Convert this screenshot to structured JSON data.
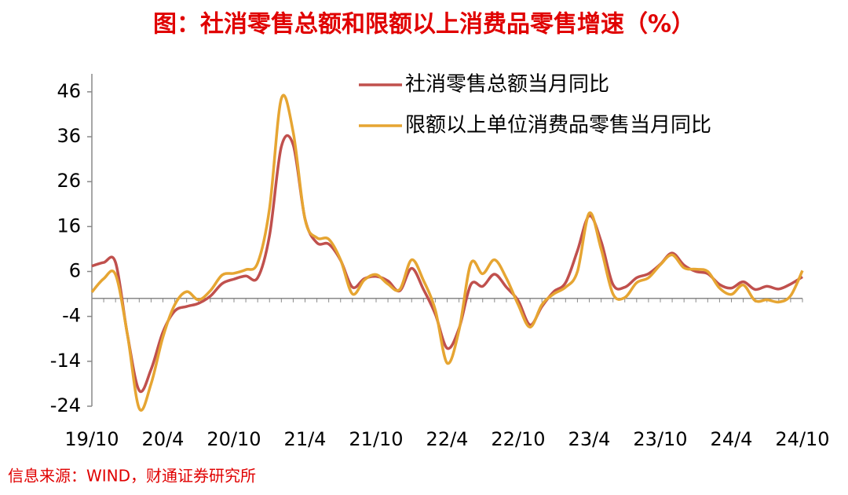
{
  "chart_data": {
    "type": "line",
    "title": "图：社消零售总额和限额以上消费品零售增速（%）",
    "source": "信息来源：WIND，财通证券研究所",
    "categories": [
      "19/10",
      null,
      null,
      null,
      null,
      null,
      "20/4",
      null,
      null,
      null,
      null,
      null,
      "20/10",
      null,
      null,
      null,
      null,
      null,
      "21/4",
      null,
      null,
      null,
      null,
      null,
      "21/10",
      null,
      null,
      null,
      null,
      null,
      "22/4",
      null,
      null,
      null,
      null,
      null,
      "22/10",
      null,
      null,
      null,
      null,
      null,
      "23/4",
      null,
      null,
      null,
      null,
      null,
      "23/10",
      null,
      null,
      null,
      null,
      null,
      "24/4",
      null,
      null,
      null,
      null,
      null,
      "24/10"
    ],
    "series": [
      {
        "name": "社消零售总额当月同比",
        "color": "#c0504d",
        "values": [
          7.2,
          8.0,
          8.0,
          -8,
          -20.5,
          -15.8,
          -7.5,
          -2.8,
          -1.8,
          -1.1,
          0.5,
          3.3,
          4.3,
          5.0,
          4.6,
          14,
          33.8,
          34.2,
          17.7,
          12.4,
          12.1,
          8.5,
          2.5,
          4.4,
          4.9,
          3.9,
          1.7,
          6.7,
          2,
          -3.5,
          -11.1,
          -6.7,
          3.1,
          2.7,
          5.4,
          2.5,
          -0.5,
          -5.9,
          -1.8,
          1.5,
          3.5,
          10.6,
          18.4,
          12.7,
          3.1,
          2.5,
          4.6,
          5.5,
          7.6,
          10.1,
          7.4,
          6.0,
          5.5,
          3.1,
          2.3,
          3.7,
          2.0,
          2.7,
          2.1,
          3.2,
          4.8
        ]
      },
      {
        "name": "限额以上单位消费品零售当月同比",
        "color": "#e6a532",
        "values": [
          1.4,
          4.4,
          5.3,
          -8,
          -24.5,
          -19,
          -8.6,
          -1.4,
          1.5,
          -0.3,
          1.7,
          5.2,
          5.6,
          6.4,
          7.9,
          20,
          44.5,
          37,
          17.6,
          13.5,
          13.2,
          8.6,
          1.0,
          4.1,
          5.3,
          3.2,
          2.0,
          8.6,
          4,
          -2.6,
          -14.4,
          -7.1,
          7.8,
          5.5,
          8.6,
          4.5,
          -1.4,
          -6.4,
          -1.4,
          1.0,
          2.5,
          6.0,
          19.0,
          11.0,
          1.0,
          0.2,
          3.5,
          4.6,
          7.5,
          9.7,
          6.8,
          6.5,
          6.0,
          2.3,
          0.9,
          3.0,
          -0.5,
          -0.3,
          -0.8,
          0.6,
          6.2
        ]
      }
    ],
    "ylim": [
      -24,
      50
    ],
    "yticks": [
      -24,
      -14,
      -4,
      6,
      16,
      26,
      36,
      46
    ]
  }
}
